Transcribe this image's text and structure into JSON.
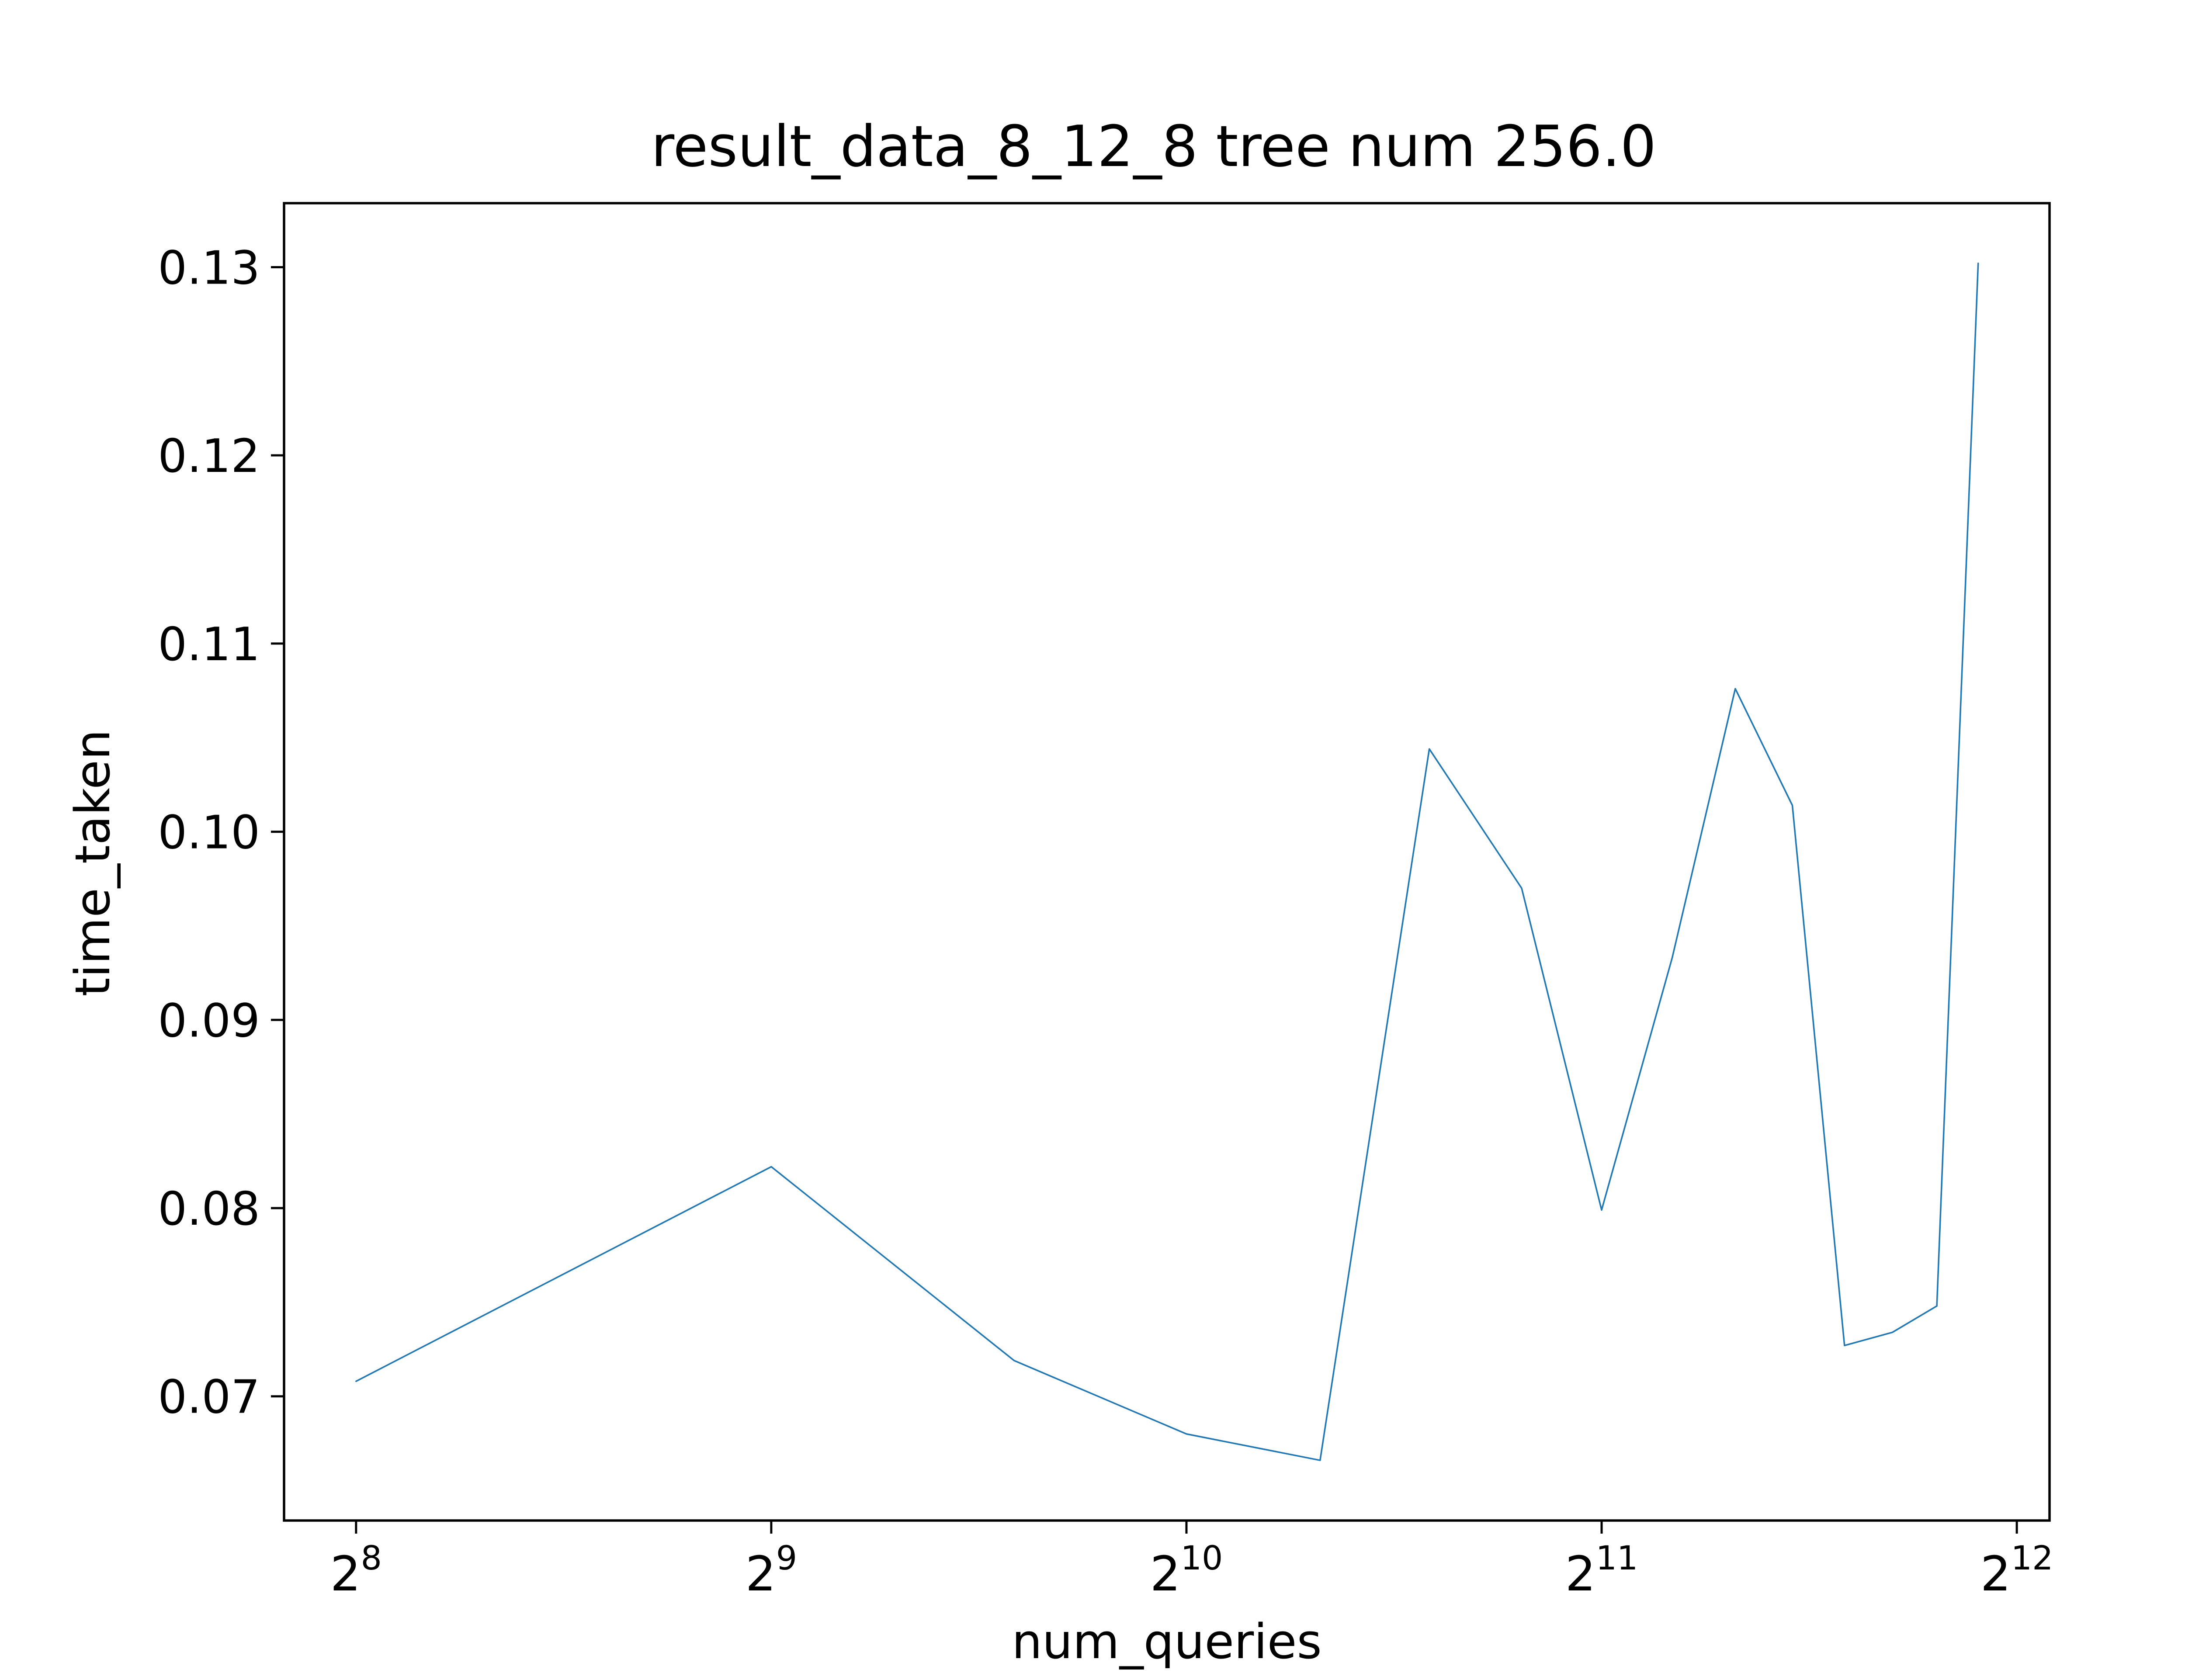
{
  "chart_data": {
    "type": "line",
    "title": "result_data_8_12_8 tree num 256.0",
    "xlabel": "num_queries",
    "ylabel": "time_taken",
    "x_scale": "log2",
    "xlim": [
      227,
      4326
    ],
    "ylim": [
      0.0634,
      0.1334
    ],
    "grid": false,
    "legend": "none",
    "x_ticks": [
      {
        "value": 256,
        "base": "2",
        "exp": "8"
      },
      {
        "value": 512,
        "base": "2",
        "exp": "9"
      },
      {
        "value": 1024,
        "base": "2",
        "exp": "10"
      },
      {
        "value": 2048,
        "base": "2",
        "exp": "11"
      },
      {
        "value": 4096,
        "base": "2",
        "exp": "12"
      }
    ],
    "y_ticks": [
      {
        "value": 0.07,
        "label": "0.07"
      },
      {
        "value": 0.08,
        "label": "0.08"
      },
      {
        "value": 0.09,
        "label": "0.09"
      },
      {
        "value": 0.1,
        "label": "0.10"
      },
      {
        "value": 0.11,
        "label": "0.11"
      },
      {
        "value": 0.12,
        "label": "0.12"
      },
      {
        "value": 0.13,
        "label": "0.13"
      }
    ],
    "series": [
      {
        "color": "#1f77b4",
        "x": [
          256,
          512,
          768,
          1024,
          1280,
          1536,
          1792,
          2048,
          2304,
          2560,
          2816,
          3072,
          3328,
          3584,
          3840
        ],
        "y": [
          0.0708,
          0.0822,
          0.0719,
          0.068,
          0.0666,
          0.1044,
          0.097,
          0.0799,
          0.0933,
          0.1076,
          0.1014,
          0.0727,
          0.0734,
          0.0748,
          0.1302
        ]
      }
    ]
  }
}
